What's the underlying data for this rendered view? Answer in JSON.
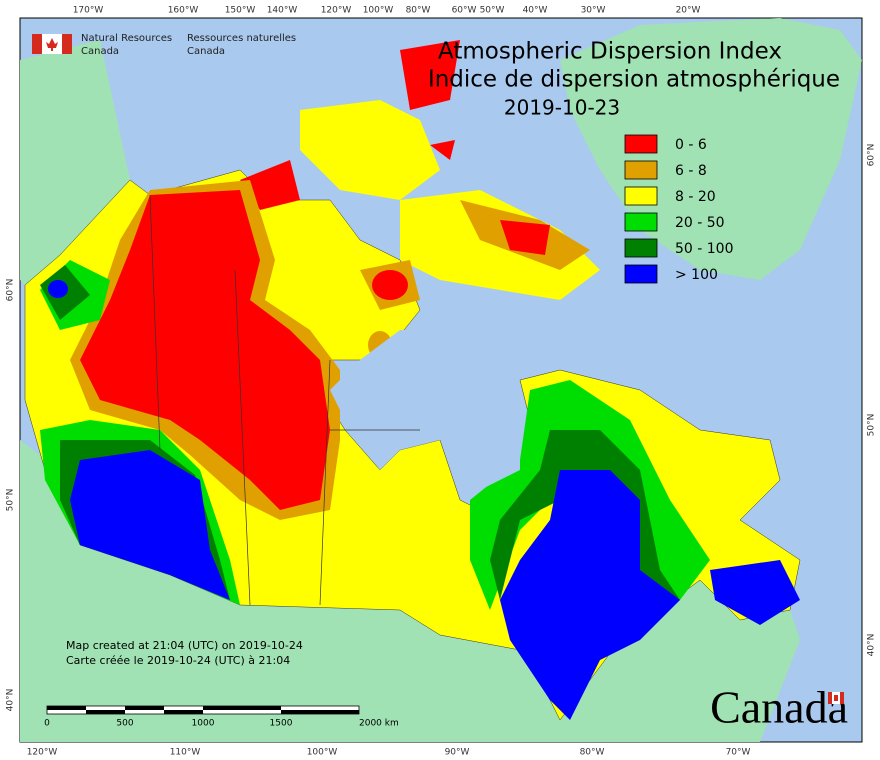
{
  "header": {
    "title": "Atmospheric Dispersion Index",
    "title_fr": "Indice de dispersion atmosphérique",
    "date": "2019-10-23"
  },
  "agency": {
    "en": [
      "Natural Resources",
      "Canada"
    ],
    "fr": [
      "Ressources naturelles",
      "Canada"
    ]
  },
  "legend": [
    {
      "label": "0 - 6",
      "color": "#ff0000"
    },
    {
      "label": "6 - 8",
      "color": "#e0a000"
    },
    {
      "label": "8 - 20",
      "color": "#ffff00"
    },
    {
      "label": "20 - 50",
      "color": "#00dd00"
    },
    {
      "label": "50 - 100",
      "color": "#008000"
    },
    {
      "label": "> 100",
      "color": "#0000ff"
    }
  ],
  "notes": [
    "Map created at 21:04 (UTC) on 2019-10-24",
    "Carte créée le 2019-10-24 (UTC) à 21:04"
  ],
  "scale_bar": [
    "0",
    "500",
    "1000",
    "1500",
    "2000 km"
  ],
  "graticule": {
    "top": [
      "170°W",
      "160°W",
      "150°W",
      "140°W",
      "120°W",
      "100°W",
      "80°W",
      "60°W",
      "50°W",
      "40°W",
      "30°W",
      "20°W"
    ],
    "bottom": [
      "120°W",
      "110°W",
      "100°W",
      "90°W",
      "80°W",
      "70°W"
    ],
    "left": [
      "60°N",
      "50°N",
      "40°N"
    ],
    "right": [
      "60°N",
      "50°N",
      "40°N"
    ]
  },
  "wordmark": "Canada"
}
